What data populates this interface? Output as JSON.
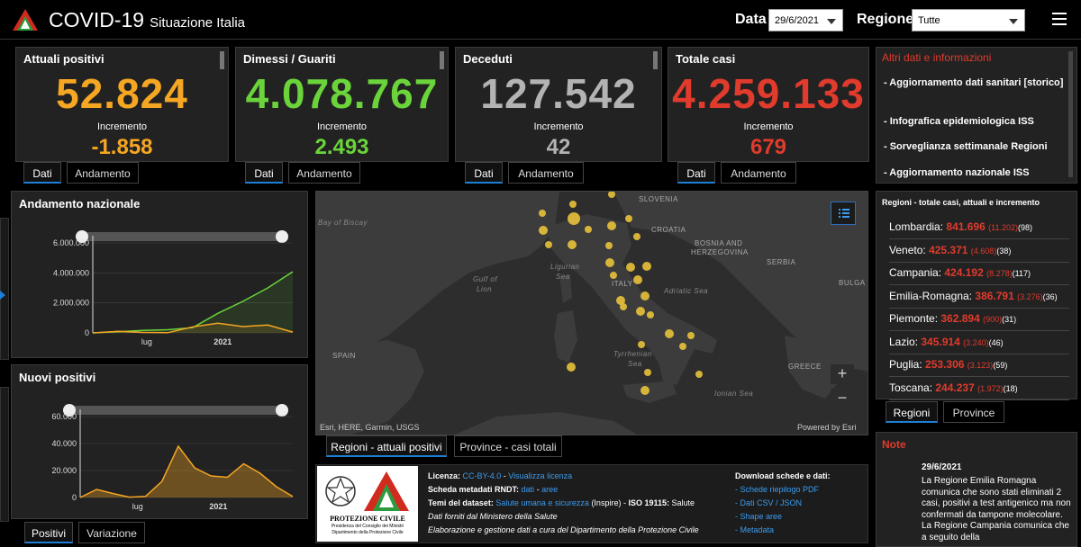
{
  "header": {
    "title": "COVID-19",
    "subtitle": "Situazione Italia",
    "date_label": "Data",
    "date_value": "29/6/2021",
    "region_label": "Regione",
    "region_value": "Tutte"
  },
  "kpis": [
    {
      "label": "Attuali positivi",
      "value": "52.824",
      "inc_label": "Incremento",
      "inc": "-1.858",
      "color": "#f5a623",
      "tab1": "Dati",
      "tab2": "Andamento"
    },
    {
      "label": "Dimessi / Guariti",
      "value": "4.078.767",
      "inc_label": "Incremento",
      "inc": "2.493",
      "color": "#6ad43a",
      "tab1": "Dati",
      "tab2": "Andamento"
    },
    {
      "label": "Deceduti",
      "value": "127.542",
      "inc_label": "Incremento",
      "inc": "42",
      "color": "#b3b3b3",
      "tab1": "Dati",
      "tab2": "Andamento"
    },
    {
      "label": "Totale casi",
      "value": "4.259.133",
      "inc_label": "Incremento",
      "inc": "679",
      "color": "#e03b2c",
      "tab1": "Dati",
      "tab2": "Andamento"
    }
  ],
  "info": {
    "heading": "Altri dati e informazioni",
    "items": [
      "- Aggiornamento dati sanitari [storico]",
      "- Infografica epidemiologica ISS",
      "- Sorveglianza settimanale Regioni",
      "- Aggiornamento nazionale ISS"
    ]
  },
  "chart_data": [
    {
      "type": "line",
      "title": "Andamento nazionale",
      "x_ticks": [
        "lug",
        "2021"
      ],
      "y_ticks": [
        "6.000.000",
        "4.000.000",
        "2.000.000",
        "0"
      ],
      "ylim": [
        0,
        6000000
      ],
      "x": [
        "2020-02",
        "2020-04",
        "2020-06",
        "2020-08",
        "2020-10",
        "2020-12",
        "2021-02",
        "2021-04",
        "2021-06"
      ],
      "series": [
        {
          "values": [
            0,
            80000,
            170000,
            210000,
            350000,
            1300000,
            2100000,
            3000000,
            4078767
          ],
          "color": "#6ad43a"
        },
        {
          "values": [
            0,
            100000,
            30000,
            15000,
            400000,
            650000,
            420000,
            520000,
            52824
          ],
          "color": "#f5a623"
        }
      ]
    },
    {
      "type": "area",
      "title": "Nuovi positivi",
      "x_ticks": [
        "lug",
        "2021"
      ],
      "y_ticks": [
        "60.000",
        "40.000",
        "20.000",
        "0"
      ],
      "ylim": [
        0,
        60000
      ],
      "x": [
        "2020-02",
        "2020-03",
        "2020-04",
        "2020-06",
        "2020-08",
        "2020-10",
        "2020-11",
        "2020-12",
        "2021-01",
        "2021-02",
        "2021-03",
        "2021-04",
        "2021-05",
        "2021-06"
      ],
      "series": [
        {
          "values": [
            0,
            6000,
            3000,
            300,
            900,
            12000,
            38000,
            22000,
            16000,
            15000,
            25000,
            18000,
            8000,
            700
          ],
          "color": "#f5a623"
        }
      ]
    }
  ],
  "chart_tabs": {
    "tab1": "Positivi",
    "tab2": "Variazione"
  },
  "map": {
    "labels": {
      "slovenia": "SLOVENIA",
      "croatia": "CROATIA",
      "bosnia": "BOSNIA AND",
      "bosnia2": "HERZEGOVINA",
      "serbia": "SERBIA",
      "bulga": "BULGA",
      "italy": "ITALY",
      "spain": "SPAIN",
      "greece": "GREECE",
      "biscay": "Bay of Biscay",
      "lion": "Gulf of",
      "lion2": "Lion",
      "ligurian": "Ligurian",
      "ligurian2": "Sea",
      "adriatic": "Adriatic Sea",
      "tyrrhenian": "Tyrrhenian",
      "tyrrhenian2": "Sea",
      "ionian": "Ionian Sea"
    },
    "attribution": "Esri, HERE, Garmin, USGS",
    "powered": "Powered by Esri",
    "tab1": "Regioni - attuali positivi",
    "tab2": "Province - casi totali",
    "zoom_in": "+",
    "zoom_out": "−"
  },
  "regions": {
    "heading": "Regioni - totale casi, attuali e incremento",
    "rows": [
      {
        "name": "Lombardia:",
        "tot": "841.696",
        "act": "(11.202)",
        "inc": "(98)"
      },
      {
        "name": "Veneto:",
        "tot": "425.371",
        "act": "(4.608)",
        "inc": "(38)"
      },
      {
        "name": "Campania:",
        "tot": "424.192",
        "act": "(8.278)",
        "inc": "(117)"
      },
      {
        "name": "Emilia-Romagna:",
        "tot": "386.791",
        "act": "(3.276)",
        "inc": "(36)"
      },
      {
        "name": "Piemonte:",
        "tot": "362.894",
        "act": "(900)",
        "inc": "(31)"
      },
      {
        "name": "Lazio:",
        "tot": "345.914",
        "act": "(3.240)",
        "inc": "(46)"
      },
      {
        "name": "Puglia:",
        "tot": "253.306",
        "act": "(3.123)",
        "inc": "(59)"
      },
      {
        "name": "Toscana:",
        "tot": "244.237",
        "act": "(1.972)",
        "inc": "(18)"
      }
    ],
    "tab1": "Regioni",
    "tab2": "Province"
  },
  "note": {
    "heading": "Note",
    "date": "29/6/2021",
    "text": "La Regione Emilia Romagna comunica che sono stati eliminati 2 casi, positivi a test antigenico ma non confermati da tampone molecolare. La Regione Campania comunica che a seguito della"
  },
  "footer": {
    "logo_title": "PROTEZIONE CIVILE",
    "logo_sub1": "Presidenza del Consiglio dei Ministri",
    "logo_sub2": "Dipartimento della Protezione Civile",
    "licenza_lbl": "Licenza:",
    "licenza_link": "CC-BY-4.0",
    "licenza_sep": " - ",
    "licenza_link2": "Visualizza licenza",
    "rndt_lbl": "Scheda metadati RNDT:",
    "rndt_link": "dati",
    "rndt_sep": " - ",
    "rndt_link2": "aree",
    "temi_lbl": "Temi del dataset:",
    "temi_link": "Salute umana e sicurezza",
    "temi_rest": " (Inspire) - ",
    "iso_lbl": "ISO 19115:",
    "iso_val": " Salute",
    "line4": "Dati forniti dal Ministero della Salute",
    "line5": "Elaborazione e gestione dati a cura del Dipartimento della Protezione Civile",
    "dl_heading": "Download schede e dati:",
    "dl_items": [
      "- Schede riepilogo PDF",
      "- Dati CSV / JSON",
      "- Shape aree",
      "- Metadata"
    ]
  }
}
